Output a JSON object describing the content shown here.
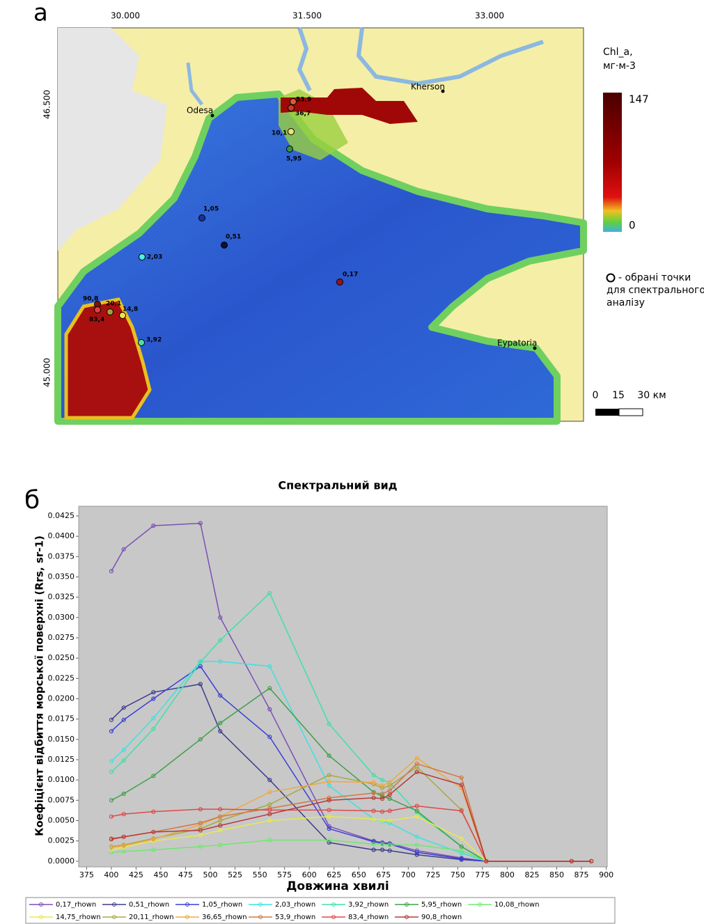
{
  "map": {
    "panel_label": "а",
    "lon_ticks": [
      "30.000",
      "31.500",
      "33.000"
    ],
    "lat_ticks": [
      "46.500",
      "45.000"
    ],
    "places": [
      "Odesa",
      "Kherson",
      "Eypatoria"
    ],
    "legend_title": "Chl_a,",
    "legend_unit": "мг·м-3",
    "colorbar_max": "147",
    "colorbar_min": "0",
    "points_note": [
      "- обрані точки",
      "для спектрального",
      "аналізу"
    ],
    "scale_labels": [
      "0",
      "15",
      "30 км"
    ],
    "point_labels": [
      "1,05",
      "0,51",
      "2,03",
      "0,17",
      "10,1",
      "5,95",
      "36,7",
      "53,9",
      "90,8",
      "20,1",
      "14,8",
      "83,4",
      "3,92"
    ]
  },
  "chart_data": {
    "type": "line",
    "panel_label": "б",
    "title": "Спектральний вид",
    "x_label": "Довжина хвилі",
    "y_label": "Коефіцієнт відбиття морської поверхні (Rrs, sr-1)",
    "x": [
      400,
      412.5,
      442.5,
      490,
      510,
      560,
      620,
      665,
      673.75,
      681.25,
      708.75,
      753.75,
      778.75,
      865,
      885
    ],
    "xlim": [
      367,
      901
    ],
    "xticks": [
      375,
      400,
      425,
      450,
      475,
      500,
      525,
      550,
      575,
      600,
      625,
      650,
      675,
      700,
      725,
      750,
      775,
      800,
      825,
      850,
      875,
      900
    ],
    "ylim": [
      -0.0007,
      0.0437
    ],
    "yticks": [
      {
        "value": 0,
        "label": "0.0000"
      },
      {
        "value": 0.0025,
        "label": "0.0025"
      },
      {
        "value": 0.005,
        "label": "0.0050"
      },
      {
        "value": 0.0075,
        "label": "0.0075"
      },
      {
        "value": 0.01,
        "label": "0.0100"
      },
      {
        "value": 0.0125,
        "label": "0.0125"
      },
      {
        "value": 0.015,
        "label": "0.0150"
      },
      {
        "value": 0.0175,
        "label": "0.0175"
      },
      {
        "value": 0.02,
        "label": "0.0200"
      },
      {
        "value": 0.0225,
        "label": "0.0225"
      },
      {
        "value": 0.025,
        "label": "0.0250"
      },
      {
        "value": 0.0275,
        "label": "0.0275"
      },
      {
        "value": 0.03,
        "label": "0.0300"
      },
      {
        "value": 0.0325,
        "label": "0.0325"
      },
      {
        "value": 0.035,
        "label": "0.0350"
      },
      {
        "value": 0.0375,
        "label": "0.0375"
      },
      {
        "value": 0.04,
        "label": "0.0400"
      },
      {
        "value": 0.0425,
        "label": "0.0425"
      }
    ],
    "series": [
      {
        "name": "0,17_rhown",
        "color": "#7a4fb5",
        "values": [
          0.0357,
          0.0384,
          0.0413,
          0.0416,
          0.03,
          0.0187,
          0.0043,
          0.0025,
          0.0023,
          0.0022,
          0.0013,
          0.0004,
          0,
          0,
          0
        ]
      },
      {
        "name": "0,51_rhown",
        "color": "#3c3c8a",
        "values": [
          0.0174,
          0.0189,
          0.0208,
          0.0218,
          0.016,
          0.01,
          0.0023,
          0.0014,
          0.0014,
          0.0013,
          0.0008,
          0.0002,
          0,
          0,
          0
        ]
      },
      {
        "name": "1,05_rhown",
        "color": "#3b3fd6",
        "values": [
          0.016,
          0.0174,
          0.02,
          0.024,
          0.0204,
          0.0153,
          0.004,
          0.0024,
          0.0022,
          0.0021,
          0.0011,
          0.0003,
          0,
          0,
          0
        ]
      },
      {
        "name": "2,03_rhown",
        "color": "#40e0e0",
        "values": [
          0.0123,
          0.0137,
          0.0176,
          0.0246,
          0.0246,
          0.024,
          0.0093,
          0.0052,
          0.0049,
          0.0047,
          0.003,
          0.001,
          0,
          0,
          0
        ]
      },
      {
        "name": "3,92_rhown",
        "color": "#3fe0a8",
        "values": [
          0.011,
          0.0124,
          0.0163,
          0.0245,
          0.0272,
          0.033,
          0.0169,
          0.0106,
          0.01,
          0.0097,
          0.006,
          0.0018,
          0,
          0,
          0
        ]
      },
      {
        "name": "5,95_rhown",
        "color": "#3fa048",
        "values": [
          0.0075,
          0.0083,
          0.0105,
          0.015,
          0.017,
          0.0213,
          0.013,
          0.0085,
          0.008,
          0.0077,
          0.0062,
          0.0018,
          0,
          0,
          0
        ]
      },
      {
        "name": "10,08_rhown",
        "color": "#6ee86e",
        "values": [
          0.0011,
          0.0012,
          0.0014,
          0.0018,
          0.002,
          0.0026,
          0.0026,
          0.0021,
          0.0021,
          0.002,
          0.002,
          0.0013,
          0,
          0,
          0
        ]
      },
      {
        "name": "14,75_rhown",
        "color": "#e8e850",
        "values": [
          0.0014,
          0.0017,
          0.0025,
          0.0032,
          0.0038,
          0.005,
          0.0055,
          0.0052,
          0.005,
          0.005,
          0.0055,
          0.0028,
          0,
          0,
          0
        ]
      },
      {
        "name": "20,11_rhown",
        "color": "#a8a840",
        "values": [
          0.0018,
          0.002,
          0.0028,
          0.004,
          0.005,
          0.007,
          0.0106,
          0.0095,
          0.009,
          0.0093,
          0.0116,
          0.0063,
          0,
          0,
          0
        ]
      },
      {
        "name": "36,65_rhown",
        "color": "#f0a840",
        "values": [
          0.0017,
          0.0019,
          0.0027,
          0.0045,
          0.0055,
          0.0085,
          0.0098,
          0.0097,
          0.0093,
          0.0097,
          0.0127,
          0.009,
          0,
          0,
          0
        ]
      },
      {
        "name": "53,9_rhown",
        "color": "#d07840",
        "values": [
          0.0028,
          0.003,
          0.0036,
          0.0047,
          0.0055,
          0.0065,
          0.0078,
          0.0084,
          0.0083,
          0.0087,
          0.012,
          0.0103,
          0,
          0,
          0
        ]
      },
      {
        "name": "83,4_rhown",
        "color": "#e04848",
        "values": [
          0.0055,
          0.0058,
          0.0061,
          0.0064,
          0.0064,
          0.0063,
          0.0063,
          0.0062,
          0.0061,
          0.0062,
          0.0068,
          0.0062,
          0,
          0,
          0
        ]
      },
      {
        "name": "90,8_rhown",
        "color": "#b83838",
        "values": [
          0.0027,
          0.003,
          0.0036,
          0.0038,
          0.0044,
          0.0058,
          0.0075,
          0.0078,
          0.0077,
          0.0082,
          0.011,
          0.0094,
          0,
          0,
          0
        ]
      }
    ]
  }
}
